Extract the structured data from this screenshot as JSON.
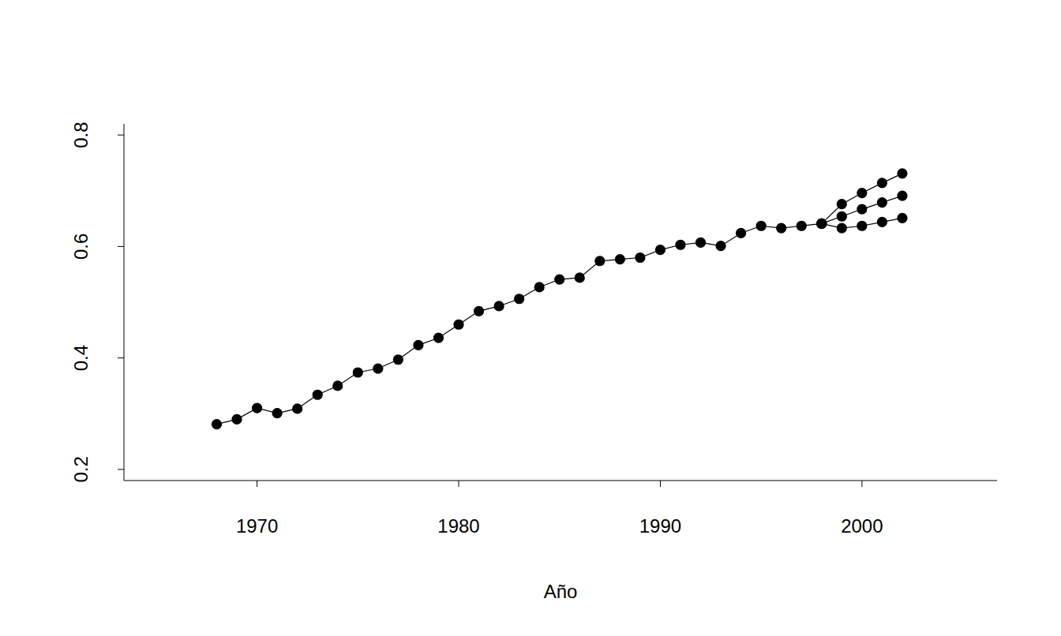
{
  "chart_data": {
    "type": "line",
    "x_label": "Año",
    "x": [
      1968,
      1969,
      1970,
      1971,
      1972,
      1973,
      1974,
      1975,
      1976,
      1977,
      1978,
      1979,
      1980,
      1981,
      1982,
      1983,
      1984,
      1985,
      1986,
      1987,
      1988,
      1989,
      1990,
      1991,
      1992,
      1993,
      1994,
      1995,
      1996,
      1997,
      1998,
      1999,
      2000,
      2001,
      2002
    ],
    "series": [
      {
        "color": "#000000",
        "marker": "circle",
        "line_style": "solid",
        "values": [
          0.281,
          0.29,
          0.31,
          0.301,
          0.309,
          0.334,
          0.35,
          0.374,
          0.381,
          0.397,
          0.423,
          0.436,
          0.46,
          0.484,
          0.493,
          0.506,
          0.527,
          0.541,
          0.544,
          0.574,
          0.577,
          0.58,
          0.594,
          0.603,
          0.607,
          0.601,
          0.624,
          0.637,
          0.633,
          0.637,
          0.641,
          null,
          null,
          null,
          null
        ]
      },
      {
        "color": "#000000",
        "marker": "circle",
        "line_style": "solid",
        "values": [
          null,
          null,
          null,
          null,
          null,
          null,
          null,
          null,
          null,
          null,
          null,
          null,
          null,
          null,
          null,
          null,
          null,
          null,
          null,
          null,
          null,
          null,
          null,
          null,
          null,
          null,
          null,
          null,
          null,
          null,
          0.641,
          0.676,
          0.696,
          0.714,
          0.731
        ]
      },
      {
        "color": "#000000",
        "marker": "circle",
        "line_style": "solid",
        "values": [
          null,
          null,
          null,
          null,
          null,
          null,
          null,
          null,
          null,
          null,
          null,
          null,
          null,
          null,
          null,
          null,
          null,
          null,
          null,
          null,
          null,
          null,
          null,
          null,
          null,
          null,
          null,
          null,
          null,
          null,
          0.641,
          0.654,
          0.667,
          0.679,
          0.691
        ]
      },
      {
        "color": "#000000",
        "marker": "circle",
        "line_style": "solid",
        "values": [
          null,
          null,
          null,
          null,
          null,
          null,
          null,
          null,
          null,
          null,
          null,
          null,
          null,
          null,
          null,
          null,
          null,
          null,
          null,
          null,
          null,
          null,
          null,
          null,
          null,
          null,
          null,
          null,
          null,
          null,
          0.641,
          0.633,
          0.637,
          0.644,
          0.651
        ]
      }
    ],
    "xlim": [
      1963.4,
      2006.7
    ],
    "xticks": [
      1970,
      1980,
      1990,
      2000
    ],
    "ylim": [
      0.18,
      0.82
    ],
    "yticks": [
      0.2,
      0.4,
      0.6,
      0.8
    ]
  }
}
